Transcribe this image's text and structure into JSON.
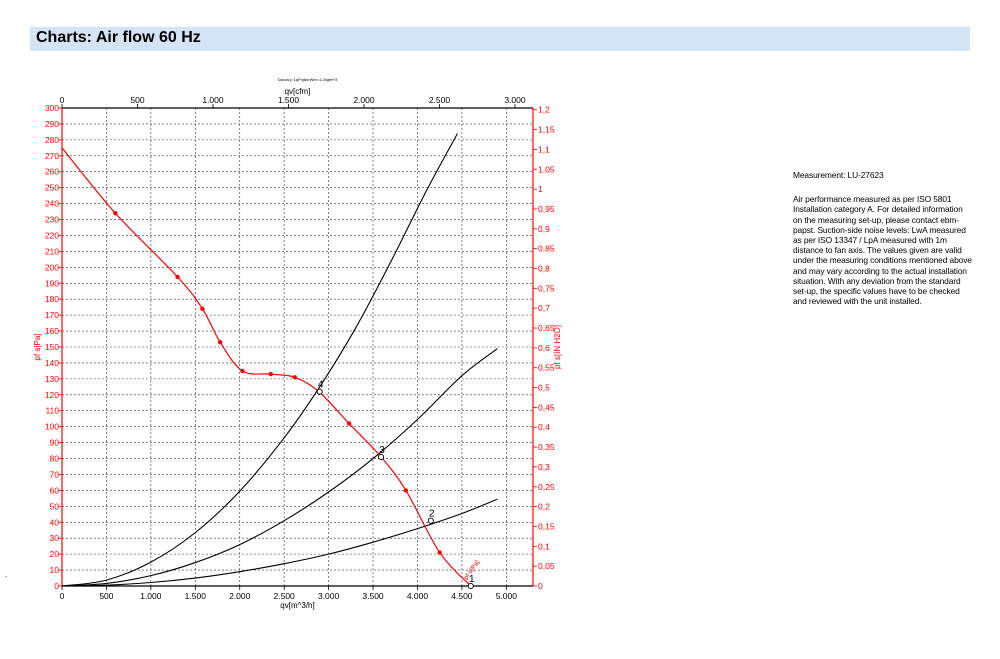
{
  "header": {
    "title": "Charts: Air flow 60 Hz"
  },
  "measurement": "Measurement: LU-27623",
  "description": "Air performance measured as per ISO 5801 Installation category A. For detailed information on the measuring set-up, please contact ebm-papst. Suction-side noise levels: LwA measured as per ISO 13347 / LpA measured with 1m distance to fan axis. The values given are valid under the measuring conditions mentioned above and may vary according to the actual installation situation. With any deviation from the standard set-up, the specific values have to be checked and reviewed with the unit installed.",
  "stray_mark": ".",
  "colors": {
    "accent_red": "#ff0000",
    "header_bg": "#d3e4f6",
    "grid": "#000000",
    "curve": "#000000"
  },
  "chart_data": {
    "type": "line",
    "title": "",
    "small_caption": "Dacos:p 1qPnj8nrWre=1,2sgfm*3",
    "grid": true,
    "xlabel": "qv[m^3/h]",
    "xlim": [
      0,
      5300
    ],
    "xticks": [
      0,
      500,
      1000,
      1500,
      2000,
      2500,
      3000,
      3500,
      4000,
      4500,
      5000
    ],
    "xtick_labels": [
      "0",
      "500",
      "1.000",
      "1.500",
      "2.000",
      "2.500",
      "3.000",
      "3.500",
      "4.000",
      "4.500",
      "5.000"
    ],
    "x2label": "qv[cfm]",
    "x2lim": [
      0,
      3119.4
    ],
    "x2ticks": [
      0,
      500,
      1000,
      1500,
      2000,
      2500,
      3000
    ],
    "x2tick_labels": [
      "0",
      "500",
      "1.000",
      "1.500",
      "2.000",
      "2.500",
      "3.000"
    ],
    "ylabel": "pf s[Pa]",
    "ylim": [
      0,
      300
    ],
    "yticks": [
      0,
      10,
      20,
      30,
      40,
      50,
      60,
      70,
      80,
      90,
      100,
      110,
      120,
      130,
      140,
      150,
      160,
      170,
      180,
      190,
      200,
      210,
      220,
      230,
      240,
      250,
      260,
      270,
      280,
      290,
      300
    ],
    "ytick_labels": [
      "0",
      "10",
      "20",
      "30",
      "40",
      "50",
      "60",
      "70",
      "80",
      "90",
      "100",
      "110",
      "120",
      "130",
      "140",
      "150",
      "160",
      "170",
      "180",
      "190",
      "200",
      "210",
      "220",
      "230",
      "240",
      "250",
      "260",
      "270",
      "280",
      "290",
      "300"
    ],
    "y2label": "pf s[IN H2O]",
    "y2lim": [
      0,
      1.2044
    ],
    "y2ticks": [
      0,
      0.05,
      0.1,
      0.15,
      0.2,
      0.25,
      0.3,
      0.35,
      0.4,
      0.45,
      0.5,
      0.55,
      0.6,
      0.65,
      0.7,
      0.75,
      0.8,
      0.85,
      0.9,
      0.95,
      1,
      1.05,
      1.1,
      1.15,
      1.2
    ],
    "y2tick_labels": [
      "0",
      "0,05",
      "0,1",
      "0,15",
      "0,2",
      "0,25",
      "0,3",
      "0,35",
      "0,4",
      "0,45",
      "0,5",
      "0,55",
      "0,6",
      "0,65",
      "0,7",
      "0,75",
      "0,8",
      "0,85",
      "0,9",
      "0,95",
      "1",
      "1,05",
      "1,1",
      "1,15",
      "1,2"
    ],
    "fan_curve": {
      "x": [
        0,
        600,
        1300,
        1580,
        1780,
        2030,
        2350,
        2620,
        2890,
        3230,
        3590,
        3870,
        4250,
        4600
      ],
      "y": [
        275,
        234,
        194,
        174,
        153,
        135,
        133,
        131,
        122,
        102,
        81,
        60,
        21,
        0
      ],
      "markers": [
        0,
        1,
        1,
        1,
        1,
        1,
        1,
        1,
        0,
        1,
        0,
        1,
        1,
        0
      ],
      "end_label": "pf s[Pa]"
    },
    "system_curves": [
      {
        "x": [
          0,
          500,
          1000,
          1500,
          2000,
          2500,
          3000,
          3500,
          4000,
          4500,
          4900
        ],
        "y": [
          0,
          0.55,
          2.2,
          5,
          9,
          14,
          20,
          27.5,
          36,
          45.5,
          54.5
        ]
      },
      {
        "x": [
          0,
          500,
          1000,
          1500,
          2000,
          2500,
          3000,
          3500,
          4000,
          4500,
          4900
        ],
        "y": [
          0,
          1.6,
          6.5,
          14.7,
          26,
          41,
          59,
          80,
          104.5,
          132,
          149
        ]
      },
      {
        "x": [
          0,
          500,
          1000,
          1500,
          2000,
          2500,
          2900,
          3300,
          3700,
          4100,
          4450
        ],
        "y": [
          0,
          3.7,
          15,
          33.5,
          59.5,
          93,
          125,
          161.5,
          203.5,
          248,
          284
        ]
      }
    ],
    "operating_points": [
      {
        "label": "4",
        "x": 2900,
        "y": 122
      },
      {
        "label": "3",
        "x": 3590,
        "y": 81
      },
      {
        "label": "2",
        "x": 4150,
        "y": 41
      },
      {
        "label": "1",
        "x": 4600,
        "y": 0
      }
    ]
  }
}
